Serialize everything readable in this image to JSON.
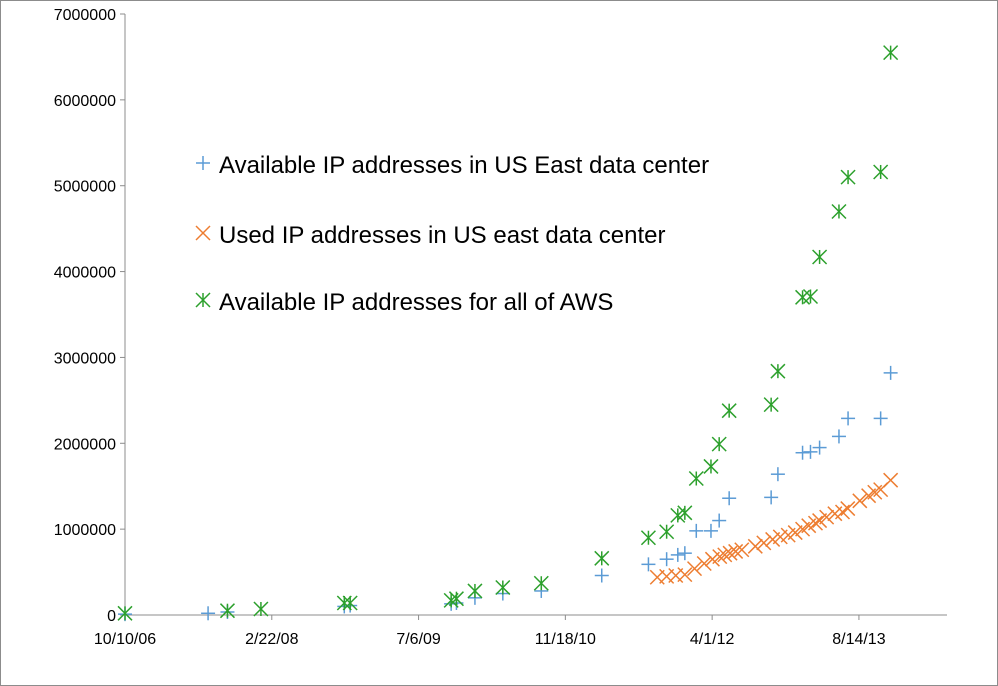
{
  "chart_data": {
    "type": "scatter",
    "title": "",
    "xlabel": "",
    "ylabel": "",
    "x_ticks": [
      "10/10/06",
      "2/22/08",
      "7/6/09",
      "11/18/10",
      "4/1/12",
      "8/14/13"
    ],
    "ylim": [
      0,
      7000000
    ],
    "y_ticks": [
      "0",
      "1000000",
      "2000000",
      "3000000",
      "4000000",
      "5000000",
      "6000000",
      "7000000"
    ],
    "grid": false,
    "legend_position": "upper-left",
    "colors": {
      "us_east_available": "#5b9bd5",
      "us_east_used": "#ed7d31",
      "all_aws": "#2ca02c"
    },
    "series": [
      {
        "name": "Available IP addresses in US East data center",
        "marker": "plus",
        "color_key": "us_east_available",
        "points": [
          [
            "10/10/06",
            10000
          ],
          [
            "7/20/07",
            20000
          ],
          [
            "9/24/07",
            35000
          ],
          [
            "10/26/08",
            100000
          ],
          [
            "11/15/08",
            110000
          ],
          [
            "10/25/09",
            130000
          ],
          [
            "11/12/09",
            140000
          ],
          [
            "1/14/10",
            200000
          ],
          [
            "4/19/10",
            250000
          ],
          [
            "8/28/10",
            280000
          ],
          [
            "3/22/11",
            460000
          ],
          [
            "8/28/11",
            590000
          ],
          [
            "10/29/11",
            650000
          ],
          [
            "12/6/11",
            700000
          ],
          [
            "12/30/11",
            720000
          ],
          [
            "2/7/12",
            980000
          ],
          [
            "3/28/12",
            980000
          ],
          [
            "4/25/12",
            1100000
          ],
          [
            "5/29/12",
            1360000
          ],
          [
            "10/19/12",
            1370000
          ],
          [
            "11/11/12",
            1640000
          ],
          [
            "2/3/13",
            1890000
          ],
          [
            "3/2/13",
            1900000
          ],
          [
            "4/2/13",
            1950000
          ],
          [
            "6/7/13",
            2080000
          ],
          [
            "7/8/13",
            2290000
          ],
          [
            "10/27/13",
            2290000
          ],
          [
            "11/30/13",
            2820000
          ]
        ]
      },
      {
        "name": "Used IP addresses in US east data center",
        "marker": "x",
        "color_key": "us_east_used",
        "points": [
          [
            "9/27/11",
            440000
          ],
          [
            "10/29/11",
            450000
          ],
          [
            "11/29/11",
            460000
          ],
          [
            "12/30/11",
            470000
          ],
          [
            "2/1/12",
            540000
          ],
          [
            "3/5/12",
            600000
          ],
          [
            "4/2/12",
            650000
          ],
          [
            "4/27/12",
            680000
          ],
          [
            "5/14/12",
            700000
          ],
          [
            "6/1/12",
            720000
          ],
          [
            "6/20/12",
            740000
          ],
          [
            "7/11/12",
            760000
          ],
          [
            "8/26/12",
            800000
          ],
          [
            "9/24/12",
            840000
          ],
          [
            "10/24/12",
            880000
          ],
          [
            "11/19/12",
            910000
          ],
          [
            "12/16/12",
            930000
          ],
          [
            "1/9/13",
            960000
          ],
          [
            "2/3/13",
            1000000
          ],
          [
            "2/24/13",
            1040000
          ],
          [
            "3/19/13",
            1070000
          ],
          [
            "4/2/13",
            1100000
          ],
          [
            "4/26/13",
            1140000
          ],
          [
            "5/24/13",
            1180000
          ],
          [
            "6/19/13",
            1200000
          ],
          [
            "7/7/13",
            1240000
          ],
          [
            "8/17/13",
            1330000
          ],
          [
            "9/16/13",
            1390000
          ],
          [
            "10/7/13",
            1430000
          ],
          [
            "10/27/13",
            1460000
          ],
          [
            "11/30/13",
            1570000
          ]
        ]
      },
      {
        "name": "Available IP addresses for all of AWS",
        "marker": "star",
        "color_key": "all_aws",
        "points": [
          [
            "10/10/06",
            20000
          ],
          [
            "9/24/07",
            50000
          ],
          [
            "1/16/08",
            70000
          ],
          [
            "10/26/08",
            140000
          ],
          [
            "11/15/08",
            140000
          ],
          [
            "10/25/09",
            170000
          ],
          [
            "11/12/09",
            190000
          ],
          [
            "1/14/10",
            280000
          ],
          [
            "4/19/10",
            320000
          ],
          [
            "8/28/10",
            370000
          ],
          [
            "3/22/11",
            660000
          ],
          [
            "8/28/11",
            900000
          ],
          [
            "10/29/11",
            970000
          ],
          [
            "12/6/11",
            1160000
          ],
          [
            "12/30/11",
            1190000
          ],
          [
            "2/7/12",
            1590000
          ],
          [
            "3/28/12",
            1730000
          ],
          [
            "4/25/12",
            1990000
          ],
          [
            "5/29/12",
            2380000
          ],
          [
            "10/19/12",
            2450000
          ],
          [
            "11/11/12",
            2840000
          ],
          [
            "2/3/13",
            3700000
          ],
          [
            "3/2/13",
            3710000
          ],
          [
            "4/2/13",
            4170000
          ],
          [
            "6/7/13",
            4700000
          ],
          [
            "7/8/13",
            5100000
          ],
          [
            "10/27/13",
            5160000
          ],
          [
            "11/30/13",
            6550000
          ]
        ]
      }
    ]
  }
}
